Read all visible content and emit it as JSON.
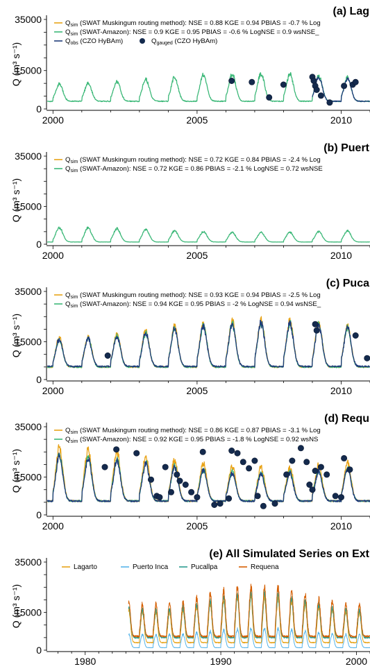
{
  "chart_data": [
    {
      "type": "line",
      "title": "(a) Lag",
      "ylabel": "Q (m³ s⁻¹)",
      "xlim": [
        1999.8,
        2011.0
      ],
      "ylim": [
        0,
        35000
      ],
      "yticks": [
        "0",
        "15000",
        "35000"
      ],
      "xticks": [
        {
          "value": 2000,
          "label": "2000"
        },
        {
          "value": 2005,
          "label": "2005"
        },
        {
          "value": 2010,
          "label": "2010"
        }
      ],
      "legend": [
        {
          "line": "Q",
          "sub": "sim",
          "rest": " (SWAT Muskingum routing method): NSE = 0.88  KGE = 0.94  PBIAS = -0.7 % Log",
          "color": "#e8a317",
          "kind": "line"
        },
        {
          "line": "Q",
          "sub": "sim",
          "rest": " (SWAT-Amazon): NSE = 0.9  KGE = 0.95  PBIAS = -0.6 % LogNSE = 0.9  wsNSE_",
          "color": "#3cb878",
          "kind": "line"
        },
        {
          "line": "Q",
          "sub": "obs",
          "rest": " (CZO HyBAm)",
          "color": "#1f3a7a",
          "kind": "line"
        },
        {
          "line": "Q",
          "sub": "gauged",
          "rest": " (CZO HyBAm)",
          "color": "#142a4d",
          "kind": "dot"
        }
      ],
      "series": [
        {
          "name": "Qsim (SWAT Muskingum routing method)",
          "color": "#e8a317",
          "peaks": 12500,
          "base": 3000,
          "start": 1999.8,
          "end": 2011.0,
          "visible": false
        },
        {
          "name": "Qsim (SWAT-Amazon)",
          "color": "#3cb878",
          "peaks": 13500,
          "base": 3000,
          "start": 1999.8,
          "end": 2011.0
        },
        {
          "name": "Qobs (CZO HyBAm)",
          "color": "#1f3a7a",
          "peaks": 13000,
          "base": 3000,
          "start": 2009.0,
          "end": 2011.0
        }
      ],
      "gauged_points": [
        [
          2006.2,
          11000
        ],
        [
          2006.9,
          10500
        ],
        [
          2007.5,
          4500
        ],
        [
          2008.0,
          9500
        ],
        [
          2009.0,
          12500
        ],
        [
          2009.05,
          11000
        ],
        [
          2009.1,
          9000
        ],
        [
          2009.15,
          7500
        ],
        [
          2009.3,
          5200
        ],
        [
          2009.6,
          2500
        ],
        [
          2010.1,
          9000
        ],
        [
          2010.4,
          9500
        ],
        [
          2010.5,
          10500
        ]
      ]
    },
    {
      "type": "line",
      "title": "(b) Puert",
      "ylabel": "Q (m³ s⁻¹)",
      "xlim": [
        1999.8,
        2011.0
      ],
      "ylim": [
        0,
        35000
      ],
      "yticks": [
        "0",
        "15000",
        "35000"
      ],
      "xticks": [
        {
          "value": 2000,
          "label": "2000"
        },
        {
          "value": 2005,
          "label": "2005"
        },
        {
          "value": 2010,
          "label": "2010"
        }
      ],
      "legend": [
        {
          "line": "Q",
          "sub": "sim",
          "rest": " (SWAT Muskingum routing method): NSE = 0.72  KGE = 0.84  PBIAS = -2.4 % Log",
          "color": "#e8a317",
          "kind": "line"
        },
        {
          "line": "Q",
          "sub": "sim",
          "rest": " (SWAT-Amazon): NSE = 0.72  KGE = 0.86  PBIAS = -2.1 % LogNSE = 0.72  wsNSE",
          "color": "#3cb878",
          "kind": "line"
        }
      ],
      "series": [
        {
          "name": "Qsim (SWAT-Amazon)",
          "color": "#3cb878",
          "peaks": 6500,
          "base": 900,
          "start": 1999.8,
          "end": 2011.0
        }
      ],
      "gauged_points": []
    },
    {
      "type": "line",
      "title": "(c) Puca",
      "ylabel": "Q (m³ s⁻¹)",
      "xlim": [
        1999.8,
        2011.0
      ],
      "ylim": [
        0,
        35000
      ],
      "yticks": [
        "0",
        "15000",
        "35000"
      ],
      "xticks": [
        {
          "value": 2000,
          "label": "2000"
        },
        {
          "value": 2005,
          "label": "2005"
        },
        {
          "value": 2010,
          "label": "2010"
        }
      ],
      "legend": [
        {
          "line": "Q",
          "sub": "sim",
          "rest": " (SWAT Muskingum routing method): NSE = 0.93  KGE = 0.94  PBIAS = -2.5 % Log",
          "color": "#e8a317",
          "kind": "line"
        },
        {
          "line": "Q",
          "sub": "sim",
          "rest": " (SWAT-Amazon): NSE = 0.94  KGE = 0.95  PBIAS = -2 % LogNSE = 0.94  wsNSE_",
          "color": "#3cb878",
          "kind": "line"
        }
      ],
      "series": [
        {
          "name": "Qsim (SWAT Muskingum routing method)",
          "color": "#e8a317",
          "peaks": 23000,
          "base": 5000,
          "start": 1999.8,
          "end": 2011.0
        },
        {
          "name": "Qsim (SWAT-Amazon)",
          "color": "#3cb878",
          "peaks": 22000,
          "base": 5000,
          "start": 1999.8,
          "end": 2011.0
        },
        {
          "name": "Qobs (CZO HyBAm)",
          "color": "#1f3a7a",
          "peaks": 22000,
          "base": 5200,
          "start": 1999.8,
          "end": 2011.0
        }
      ],
      "gauged_points": [
        [
          2001.9,
          9500
        ],
        [
          2009.1,
          22000
        ],
        [
          2009.15,
          19500
        ],
        [
          2010.5,
          17500
        ],
        [
          2010.9,
          8500
        ]
      ]
    },
    {
      "type": "line",
      "title": "(d) Requ",
      "ylabel": "Q (m³ s⁻¹)",
      "xlim": [
        1999.8,
        2011.0
      ],
      "ylim": [
        0,
        35000
      ],
      "yticks": [
        "0",
        "15000",
        "35000"
      ],
      "xticks": [
        {
          "value": 2000,
          "label": "2000"
        },
        {
          "value": 2005,
          "label": "2005"
        },
        {
          "value": 2010,
          "label": "2010"
        }
      ],
      "legend": [
        {
          "line": "Q",
          "sub": "sim",
          "rest": " (SWAT Muskingum routing method): NSE = 0.86  KGE = 0.87  PBIAS = -3.1 % Log",
          "color": "#e8a317",
          "kind": "line"
        },
        {
          "line": "Q",
          "sub": "sim",
          "rest": " (SWAT-Amazon): NSE = 0.92  KGE = 0.95  PBIAS = -1.8 % LogNSE = 0.92  wsNS",
          "color": "#3cb878",
          "kind": "line"
        }
      ],
      "series": [
        {
          "name": "Qsim (SWAT Muskingum routing method)",
          "color": "#e8a317",
          "peaks": 26000,
          "base": 5500,
          "start": 1999.8,
          "end": 2011.0
        },
        {
          "name": "Qsim (SWAT-Amazon)",
          "color": "#3cb878",
          "peaks": 23000,
          "base": 5500,
          "start": 1999.8,
          "end": 2011.0
        },
        {
          "name": "Qobs (CZO HyBAm)",
          "color": "#1f3a7a",
          "peaks": 22500,
          "base": 5500,
          "start": 1999.8,
          "end": 2011.0
        }
      ],
      "gauged_points": [
        [
          2001.8,
          19000
        ],
        [
          2002.2,
          26000
        ],
        [
          2002.9,
          24500
        ],
        [
          2003.4,
          14000
        ],
        [
          2003.6,
          7500
        ],
        [
          2003.7,
          7000
        ],
        [
          2003.9,
          19000
        ],
        [
          2004.1,
          9000
        ],
        [
          2004.3,
          16000
        ],
        [
          2004.4,
          13500
        ],
        [
          2004.6,
          12000
        ],
        [
          2004.8,
          9000
        ],
        [
          2005.0,
          7000
        ],
        [
          2005.2,
          25000
        ],
        [
          2005.6,
          4000
        ],
        [
          2005.8,
          4500
        ],
        [
          2006.1,
          6500
        ],
        [
          2006.2,
          25500
        ],
        [
          2006.4,
          24500
        ],
        [
          2006.6,
          21000
        ],
        [
          2006.8,
          18500
        ],
        [
          2007.0,
          21500
        ],
        [
          2007.1,
          7500
        ],
        [
          2007.3,
          3500
        ],
        [
          2007.7,
          4500
        ],
        [
          2008.1,
          16000
        ],
        [
          2008.3,
          21500
        ],
        [
          2008.6,
          26500
        ],
        [
          2008.8,
          21000
        ],
        [
          2008.9,
          12000
        ],
        [
          2009.0,
          10000
        ],
        [
          2009.1,
          17500
        ],
        [
          2009.3,
          19000
        ],
        [
          2009.5,
          16000
        ],
        [
          2009.8,
          7500
        ],
        [
          2010.0,
          7000
        ],
        [
          2010.1,
          22500
        ],
        [
          2010.3,
          18000
        ]
      ]
    },
    {
      "type": "line",
      "title": "(e) All Simulated Series on Ext",
      "ylabel": "Q (m³ s⁻¹)",
      "xlim": [
        1977.2,
        2001.0
      ],
      "ylim": [
        0,
        35000
      ],
      "yticks": [
        "0",
        "15000",
        "35000"
      ],
      "xticks": [
        {
          "value": 1980,
          "label": "1980"
        },
        {
          "value": 1990,
          "label": "1990"
        },
        {
          "value": 2000,
          "label": "2000"
        }
      ],
      "legend": [
        {
          "label": "Lagarto",
          "color": "#e8a317"
        },
        {
          "label": "Puerto Inca",
          "color": "#56b4e9"
        },
        {
          "label": "Pucallpa",
          "color": "#2a9d8f"
        },
        {
          "label": "Requena",
          "color": "#d55e00"
        }
      ],
      "series": [
        {
          "name": "Lagarto",
          "color": "#e8a317",
          "peaks": 21000,
          "base": 3000,
          "start": 1983.2,
          "end": 2001.0
        },
        {
          "name": "Puerto Inca",
          "color": "#56b4e9",
          "peaks": 8500,
          "base": 1000,
          "start": 1983.2,
          "end": 2001.0
        },
        {
          "name": "Pucallpa",
          "color": "#2a9d8f",
          "peaks": 22000,
          "base": 5000,
          "start": 1983.2,
          "end": 2001.0
        },
        {
          "name": "Requena",
          "color": "#d55e00",
          "peaks": 25000,
          "base": 5500,
          "start": 1983.2,
          "end": 2001.0
        }
      ],
      "gauged_points": []
    }
  ]
}
